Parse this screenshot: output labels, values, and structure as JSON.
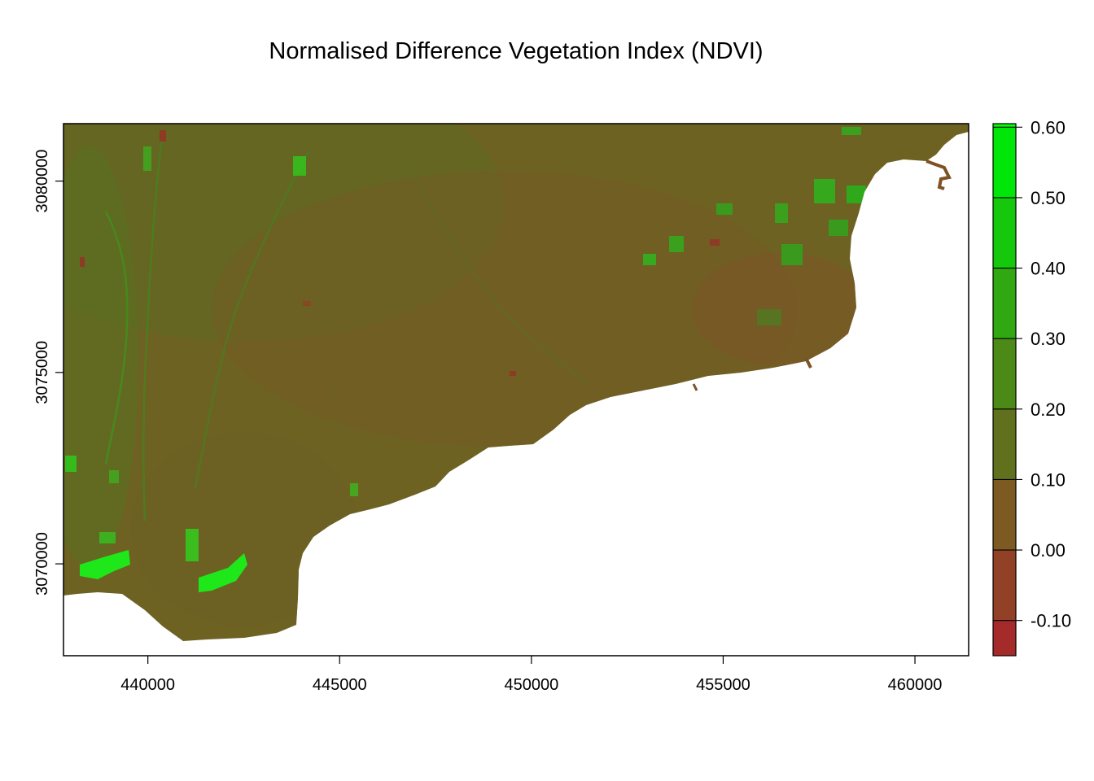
{
  "title": "Normalised Difference Vegetation Index (NDVI)",
  "chart_data": {
    "type": "heatmap",
    "title": "Normalised Difference Vegetation Index (NDVI)",
    "xlabel": "",
    "ylabel": "",
    "xlim": [
      437800,
      461400
    ],
    "ylim": [
      3067600,
      3081500
    ],
    "x_ticks": [
      "440000",
      "445000",
      "450000",
      "455000",
      "460000"
    ],
    "y_ticks": [
      "3070000",
      "3075000",
      "3080000"
    ],
    "x_tick_values": [
      440000,
      445000,
      450000,
      455000,
      460000
    ],
    "y_tick_values": [
      3070000,
      3075000,
      3080000
    ],
    "legend": {
      "placement": "right",
      "range": [
        -0.15,
        0.605
      ],
      "labels": [
        "0.60",
        "0.50",
        "0.40",
        "0.30",
        "0.20",
        "0.10",
        "0.00",
        "-0.10"
      ],
      "values": [
        0.6,
        0.5,
        0.4,
        0.3,
        0.2,
        0.1,
        0.0,
        -0.1
      ],
      "bins": [
        {
          "from": -0.15,
          "to": -0.1,
          "color": "#a52a2a"
        },
        {
          "from": -0.1,
          "to": 0.0,
          "color": "#914226"
        },
        {
          "from": 0.0,
          "to": 0.1,
          "color": "#7c5a22"
        },
        {
          "from": 0.1,
          "to": 0.2,
          "color": "#60701c"
        },
        {
          "from": 0.2,
          "to": 0.3,
          "color": "#4b8a16"
        },
        {
          "from": 0.3,
          "to": 0.4,
          "color": "#30a812"
        },
        {
          "from": 0.4,
          "to": 0.5,
          "color": "#16c80c"
        },
        {
          "from": 0.5,
          "to": 0.6,
          "color": "#00e608"
        },
        {
          "from": 0.6,
          "to": 0.605,
          "color": "#00ff00"
        }
      ]
    },
    "colors": {
      "base_land": "#6e6223",
      "vegetation_high": "#1fe01a",
      "vegetation_mid": "#3c9a1e",
      "bare_low": "#8a4a24"
    }
  }
}
